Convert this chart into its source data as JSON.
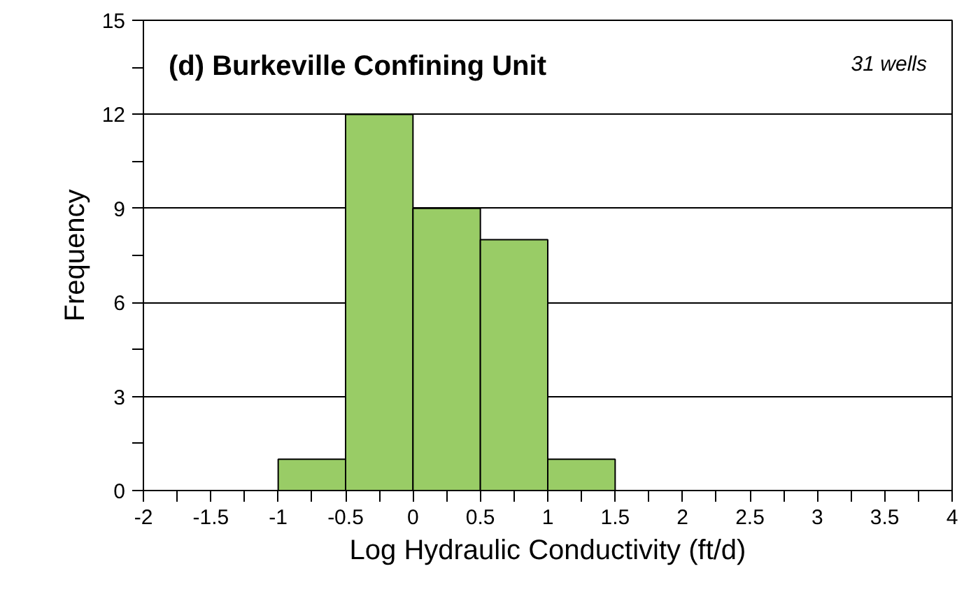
{
  "chart_data": {
    "type": "histogram",
    "title": "(d) Burkeville Confining Unit",
    "annotations": [
      "31 wells"
    ],
    "xlabel": "Log Hydraulic Conductivity (ft/d)",
    "ylabel": "Frequency",
    "bins": [
      -1,
      -0.5,
      0,
      0.5,
      1,
      1.5
    ],
    "values": [
      1,
      12,
      9,
      8,
      1
    ],
    "color": "#99cc66",
    "xlim": [
      -2,
      4
    ],
    "ylim": [
      0,
      15
    ],
    "xticks": [
      -2,
      {
        "value": -1.75,
        "label": null
      },
      -1.5,
      {
        "value": -1.25,
        "label": null
      },
      -1,
      {
        "value": -0.75,
        "label": null
      },
      -0.5,
      {
        "value": -0.25,
        "label": null
      },
      0,
      {
        "value": 0.25,
        "label": null
      },
      0.5,
      {
        "value": 0.75,
        "label": null
      },
      1,
      {
        "value": 1.25,
        "label": null
      },
      1.5,
      {
        "value": 1.75,
        "label": null
      },
      2,
      {
        "value": 2.25,
        "label": null
      },
      2.5,
      {
        "value": 2.75,
        "label": null
      },
      3,
      {
        "value": 3.25,
        "label": null
      },
      3.5,
      {
        "value": 3.75,
        "label": null
      },
      4
    ],
    "yticks": [
      0,
      {
        "value": 1.5,
        "label": null
      },
      3,
      {
        "value": 4.5,
        "label": null
      },
      6,
      {
        "value": 7.5,
        "label": null
      },
      9,
      {
        "value": 10.5,
        "label": null
      },
      12,
      {
        "value": 13.5,
        "label": null
      },
      15
    ],
    "grid": "y"
  }
}
